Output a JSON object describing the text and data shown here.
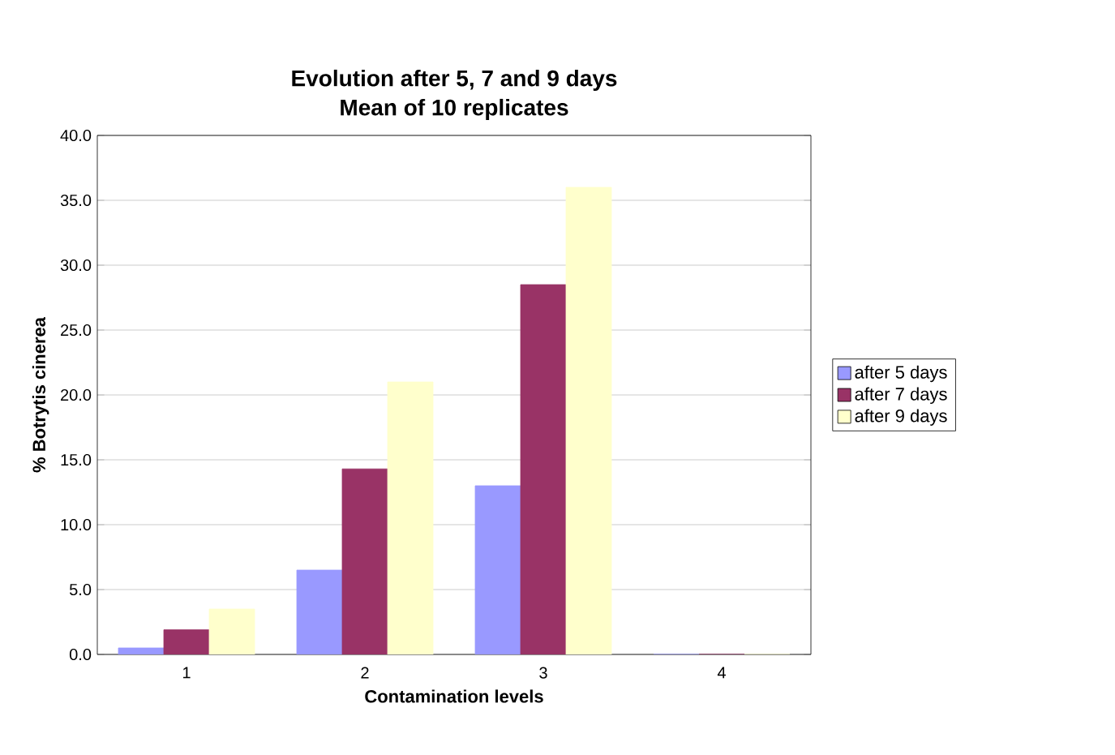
{
  "chart_data": {
    "type": "bar",
    "title": "Evolution after 5, 7 and 9 days",
    "subtitle": "Mean of 10 replicates",
    "xlabel": "Contamination levels",
    "ylabel": "% Botrytis cinerea",
    "categories": [
      "1",
      "2",
      "3",
      "4"
    ],
    "series": [
      {
        "name": "after 5 days",
        "color": "#9999ff",
        "values": [
          0.5,
          6.5,
          13.0,
          0.0
        ]
      },
      {
        "name": "after 7 days",
        "color": "#993366",
        "values": [
          1.9,
          14.3,
          28.5,
          0.0
        ]
      },
      {
        "name": "after 9 days",
        "color": "#ffffcc",
        "values": [
          3.5,
          21.0,
          36.0,
          0.0
        ]
      }
    ],
    "ylim": [
      0,
      40
    ],
    "yticks": [
      {
        "value": 0,
        "label": "0.0"
      },
      {
        "value": 5,
        "label": "5.0"
      },
      {
        "value": 10,
        "label": "10.0"
      },
      {
        "value": 15,
        "label": "15.0"
      },
      {
        "value": 20,
        "label": "20.0"
      },
      {
        "value": 25,
        "label": "25.0"
      },
      {
        "value": 30,
        "label": "30.0"
      },
      {
        "value": 35,
        "label": "35.0"
      },
      {
        "value": 40,
        "label": "40.0"
      }
    ],
    "grid": "y",
    "legend": "right"
  }
}
